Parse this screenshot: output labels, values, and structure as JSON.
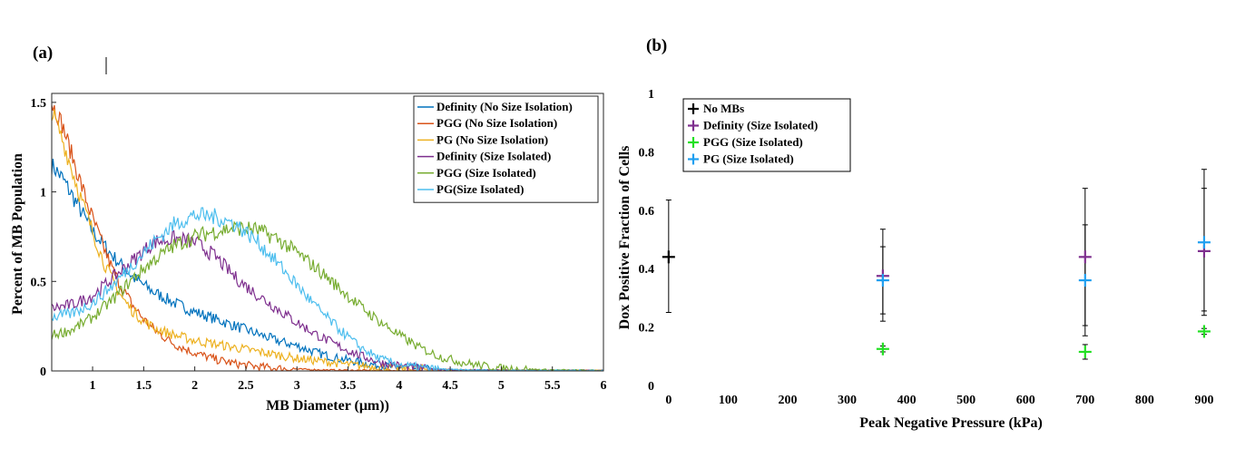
{
  "chart_data": [
    {
      "panel": "(a)",
      "type": "line",
      "xlabel": "MB Diameter (μm))",
      "ylabel": "Percent of MB Population",
      "xlim": [
        0.6,
        6
      ],
      "ylim": [
        0,
        1.55
      ],
      "xticks": [
        1,
        1.5,
        2,
        2.5,
        3,
        3.5,
        4,
        4.5,
        5,
        5.5,
        6
      ],
      "xtick_labels": [
        "1",
        "1.5",
        "2",
        "2.5",
        "3",
        "3.5",
        "4",
        "4.5",
        "5",
        "5.5",
        "6"
      ],
      "yticks": [
        0,
        0.5,
        1,
        1.5
      ],
      "ytick_labels": [
        "0",
        "0.5",
        "1",
        "1.5"
      ],
      "legend_position": "top-right",
      "grid": false,
      "series": [
        {
          "name": "Definity (No Size Isolation)",
          "color": "#0072bd",
          "x": [
            0.6,
            0.7,
            0.8,
            0.9,
            1.0,
            1.2,
            1.4,
            1.6,
            1.8,
            2.0,
            2.2,
            2.4,
            2.6,
            2.8,
            3.0,
            3.2,
            3.4,
            3.6,
            3.8,
            4.0,
            4.3,
            4.6,
            5.0,
            5.5,
            6.0
          ],
          "y": [
            1.15,
            1.08,
            0.98,
            0.88,
            0.78,
            0.64,
            0.52,
            0.44,
            0.38,
            0.33,
            0.29,
            0.25,
            0.21,
            0.17,
            0.14,
            0.1,
            0.07,
            0.05,
            0.03,
            0.02,
            0.01,
            0.005,
            0.003,
            0.002,
            0.002
          ]
        },
        {
          "name": "PGG (No Size Isolation)",
          "color": "#d95319",
          "x": [
            0.6,
            0.7,
            0.8,
            0.9,
            1.0,
            1.1,
            1.2,
            1.3,
            1.4,
            1.5,
            1.6,
            1.8,
            2.0,
            2.2,
            2.4,
            2.6,
            2.8,
            3.0,
            3.3,
            3.6,
            4.0,
            4.5,
            5.0,
            6.0
          ],
          "y": [
            1.5,
            1.38,
            1.2,
            1.02,
            0.85,
            0.7,
            0.56,
            0.45,
            0.36,
            0.29,
            0.23,
            0.15,
            0.1,
            0.065,
            0.04,
            0.025,
            0.015,
            0.01,
            0.005,
            0.003,
            0.002,
            0.001,
            0.001,
            0.001
          ]
        },
        {
          "name": "PG (No Size Isolation)",
          "color": "#edb120",
          "x": [
            0.6,
            0.7,
            0.8,
            0.9,
            1.0,
            1.1,
            1.2,
            1.3,
            1.4,
            1.5,
            1.6,
            1.8,
            2.0,
            2.2,
            2.4,
            2.6,
            2.8,
            3.0,
            3.3,
            3.6,
            4.0,
            4.5,
            5.0,
            6.0
          ],
          "y": [
            1.45,
            1.3,
            1.12,
            0.94,
            0.78,
            0.62,
            0.5,
            0.4,
            0.33,
            0.28,
            0.24,
            0.2,
            0.17,
            0.15,
            0.13,
            0.11,
            0.09,
            0.07,
            0.05,
            0.03,
            0.015,
            0.007,
            0.003,
            0.002
          ]
        },
        {
          "name": "Definity (Size Isolated)",
          "color": "#7e2f8e",
          "x": [
            0.6,
            0.8,
            1.0,
            1.2,
            1.4,
            1.6,
            1.8,
            2.0,
            2.2,
            2.4,
            2.6,
            2.8,
            3.0,
            3.2,
            3.4,
            3.6,
            3.8,
            4.0,
            4.3,
            4.6,
            5.0,
            5.5,
            6.0
          ],
          "y": [
            0.35,
            0.37,
            0.42,
            0.52,
            0.62,
            0.72,
            0.74,
            0.72,
            0.64,
            0.52,
            0.43,
            0.35,
            0.27,
            0.2,
            0.14,
            0.09,
            0.05,
            0.03,
            0.01,
            0.005,
            0.003,
            0.002,
            0.002
          ]
        },
        {
          "name": "PGG (Size Isolated)",
          "color": "#77ac30",
          "x": [
            0.6,
            0.8,
            1.0,
            1.2,
            1.4,
            1.6,
            1.8,
            2.0,
            2.2,
            2.4,
            2.6,
            2.8,
            3.0,
            3.2,
            3.4,
            3.6,
            3.8,
            4.0,
            4.2,
            4.4,
            4.6,
            4.8,
            5.0,
            5.5,
            6.0
          ],
          "y": [
            0.2,
            0.23,
            0.3,
            0.4,
            0.52,
            0.62,
            0.7,
            0.75,
            0.78,
            0.8,
            0.79,
            0.74,
            0.66,
            0.57,
            0.47,
            0.37,
            0.28,
            0.2,
            0.13,
            0.08,
            0.05,
            0.03,
            0.015,
            0.005,
            0.002
          ]
        },
        {
          "name": "PG(Size Isolated)",
          "color": "#4dbeee",
          "x": [
            0.6,
            0.8,
            1.0,
            1.2,
            1.4,
            1.6,
            1.8,
            2.0,
            2.2,
            2.4,
            2.6,
            2.8,
            3.0,
            3.2,
            3.4,
            3.6,
            3.8,
            4.0,
            4.3,
            4.6,
            5.0,
            5.5,
            6.0
          ],
          "y": [
            0.3,
            0.32,
            0.38,
            0.48,
            0.6,
            0.72,
            0.82,
            0.87,
            0.86,
            0.82,
            0.73,
            0.61,
            0.48,
            0.35,
            0.24,
            0.14,
            0.07,
            0.035,
            0.012,
            0.005,
            0.002,
            0.002,
            0.002
          ]
        }
      ]
    },
    {
      "panel": "(b)",
      "type": "scatter",
      "xlabel": "Peak Negative Pressure (kPa)",
      "ylabel": "Dox Positive Fraction of Cells",
      "xlim": [
        -15,
        955
      ],
      "ylim": [
        0,
        1
      ],
      "xticks": [
        0,
        100,
        200,
        300,
        400,
        500,
        600,
        700,
        800,
        900
      ],
      "xtick_labels": [
        "0",
        "100",
        "200",
        "300",
        "400",
        "500",
        "600",
        "700",
        "800",
        "900"
      ],
      "yticks": [
        0,
        0.2,
        0.4,
        0.6,
        0.8,
        1
      ],
      "ytick_labels": [
        "0",
        "0.2",
        "0.4",
        "0.6",
        "0.8",
        "1"
      ],
      "legend_position": "top-left",
      "grid": false,
      "series": [
        {
          "name": "No MBs",
          "color": "#000000",
          "x": [
            0
          ],
          "y": [
            0.44
          ],
          "err_low": [
            0.25
          ],
          "err_high": [
            0.635
          ]
        },
        {
          "name": "Definity (Size Isolated)",
          "color": "#7e2f8e",
          "x": [
            360,
            700,
            900
          ],
          "y": [
            0.375,
            0.44,
            0.46
          ],
          "err_low": [
            0.22,
            0.205,
            0.255
          ],
          "err_high": [
            0.535,
            0.675,
            0.74
          ]
        },
        {
          "name": "PGG (Size Isolated)",
          "color": "#22e022",
          "x": [
            360,
            700,
            900
          ],
          "y": [
            0.125,
            0.115,
            0.185
          ],
          "err_low": [
            0.115,
            0.09,
            0.175
          ],
          "err_high": [
            0.135,
            0.14,
            0.195
          ]
        },
        {
          "name": "PG (Size Isolated)",
          "color": "#1f9ff0",
          "x": [
            360,
            700,
            900
          ],
          "y": [
            0.36,
            0.36,
            0.49
          ],
          "err_low": [
            0.245,
            0.17,
            0.24
          ],
          "err_high": [
            0.475,
            0.55,
            0.675
          ]
        }
      ]
    }
  ]
}
